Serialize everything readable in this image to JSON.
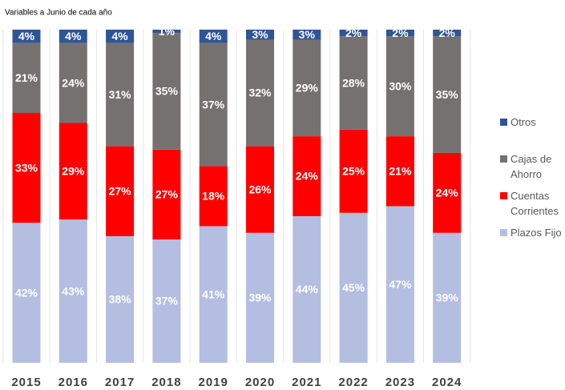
{
  "chart_data": {
    "type": "stacked_bar",
    "title": "Variables a Junio de cada año",
    "categories": [
      "2015",
      "2016",
      "2017",
      "2018",
      "2019",
      "2020",
      "2021",
      "2022",
      "2023",
      "2024"
    ],
    "ylim": [
      0,
      100
    ],
    "legend": "right",
    "series": [
      {
        "name": "Plazos Fijo",
        "color": "#b4bee0",
        "values": [
          42,
          43,
          38,
          37,
          41,
          39,
          44,
          45,
          47,
          39
        ],
        "value_labels": [
          "42%",
          "43%",
          "38%",
          "37%",
          "41%",
          "39%",
          "44%",
          "45%",
          "47%",
          "39%"
        ]
      },
      {
        "name": "Cuentas Corrientes",
        "color": "#ff0000",
        "values": [
          33,
          29,
          27,
          27,
          18,
          26,
          24,
          25,
          21,
          24
        ],
        "value_labels": [
          "33%",
          "29%",
          "27%",
          "27%",
          "18%",
          "26%",
          "24%",
          "25%",
          "21%",
          "24%"
        ]
      },
      {
        "name": "Cajas de Ahorro",
        "color": "#767171",
        "values": [
          21,
          24,
          31,
          35,
          37,
          32,
          29,
          28,
          30,
          35
        ],
        "value_labels": [
          "21%",
          "24%",
          "31%",
          "35%",
          "37%",
          "32%",
          "29%",
          "28%",
          "30%",
          "35%"
        ]
      },
      {
        "name": "Otros",
        "color": "#2f5597",
        "values": [
          4,
          4,
          4,
          1,
          4,
          3,
          3,
          2,
          2,
          2
        ],
        "value_labels": [
          "4%",
          "4%",
          "4%",
          "1%",
          "4%",
          "3%",
          "3%",
          "2%",
          "2%",
          "2%"
        ]
      }
    ]
  }
}
